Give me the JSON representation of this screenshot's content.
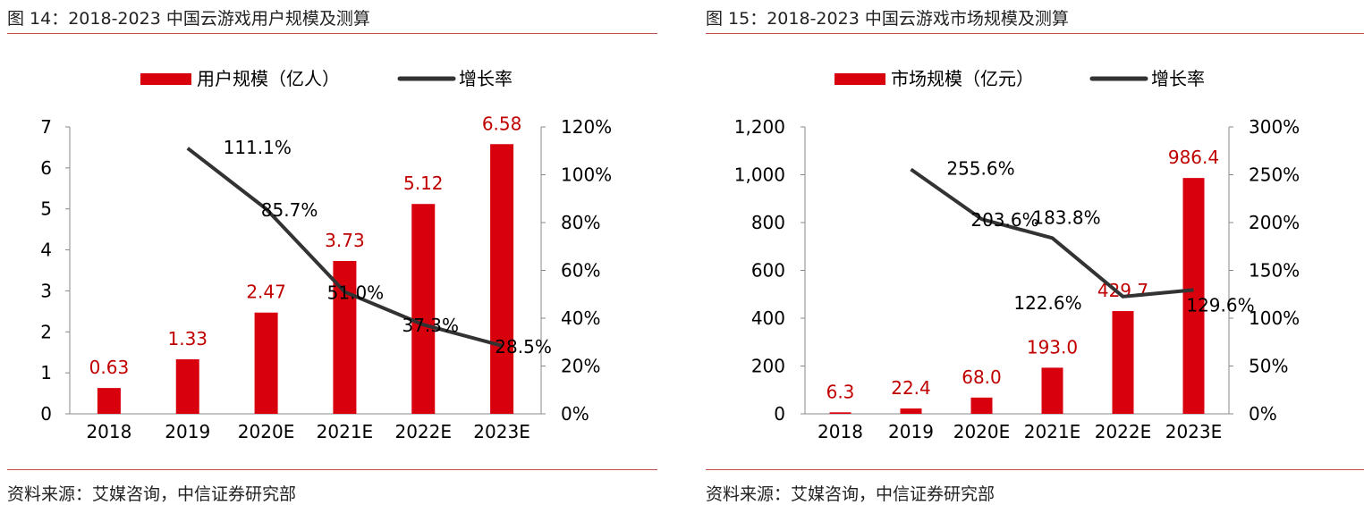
{
  "charts": [
    {
      "id": "left",
      "title": "图 14：2018-2023 中国云游戏用户规模及测算",
      "source": "资料来源：艾媒咨询，中信证券研究部",
      "colors": {
        "bar": "#d9000d",
        "line": "#333333",
        "bar_label": "#c00000",
        "rule": "#c0504d"
      }
    },
    {
      "id": "right",
      "title": "图 15：2018-2023 中国云游戏市场规模及测算",
      "source": "资料来源：艾媒咨询，中信证券研究部",
      "colors": {
        "bar": "#d9000d",
        "line": "#333333",
        "bar_label": "#c00000",
        "rule": "#c0504d"
      }
    }
  ],
  "chart_data": [
    {
      "type": "bar",
      "title": "图 14：2018-2023 中国云游戏用户规模及测算",
      "categories": [
        "2018",
        "2019",
        "2020E",
        "2021E",
        "2022E",
        "2023E"
      ],
      "series": [
        {
          "name": "用户规模（亿人）",
          "type": "bar",
          "axis": "left",
          "values": [
            0.63,
            1.33,
            2.47,
            3.73,
            5.12,
            6.58
          ],
          "labels": [
            "0.63",
            "1.33",
            "2.47",
            "3.73",
            "5.12",
            "6.58"
          ]
        },
        {
          "name": "增长率",
          "type": "line",
          "axis": "right",
          "values": [
            null,
            111.1,
            85.7,
            51.0,
            37.3,
            28.5
          ],
          "labels": [
            "",
            "111.1%",
            "85.7%",
            "51.0%",
            "37.3%",
            "28.5%"
          ]
        }
      ],
      "y_left": {
        "range": [
          0,
          7
        ],
        "ticks": [
          "0",
          "1",
          "2",
          "3",
          "4",
          "5",
          "6",
          "7"
        ]
      },
      "y_right": {
        "range": [
          0,
          120
        ],
        "ticks": [
          "0%",
          "20%",
          "40%",
          "60%",
          "80%",
          "100%",
          "120%"
        ]
      },
      "legend_position": "top",
      "grid": false
    },
    {
      "type": "bar",
      "title": "图 15：2018-2023 中国云游戏市场规模及测算",
      "categories": [
        "2018",
        "2019",
        "2020E",
        "2021E",
        "2022E",
        "2023E"
      ],
      "series": [
        {
          "name": "市场规模（亿元）",
          "type": "bar",
          "axis": "left",
          "values": [
            6.3,
            22.4,
            68.0,
            193.0,
            429.7,
            986.4
          ],
          "labels": [
            "6.3",
            "22.4",
            "68.0",
            "193.0",
            "429.7",
            "986.4"
          ]
        },
        {
          "name": "增长率",
          "type": "line",
          "axis": "right",
          "values": [
            null,
            255.6,
            203.6,
            183.8,
            122.6,
            129.6
          ],
          "labels": [
            "",
            "255.6%",
            "203.6%",
            "183.8%",
            "122.6%",
            "129.6%"
          ]
        }
      ],
      "y_left": {
        "range": [
          0,
          1200
        ],
        "ticks": [
          "0",
          "200",
          "400",
          "600",
          "800",
          "1,000",
          "1,200"
        ]
      },
      "y_right": {
        "range": [
          0,
          300
        ],
        "ticks": [
          "0%",
          "50%",
          "100%",
          "150%",
          "200%",
          "250%",
          "300%"
        ]
      },
      "legend_position": "top",
      "grid": false
    }
  ]
}
